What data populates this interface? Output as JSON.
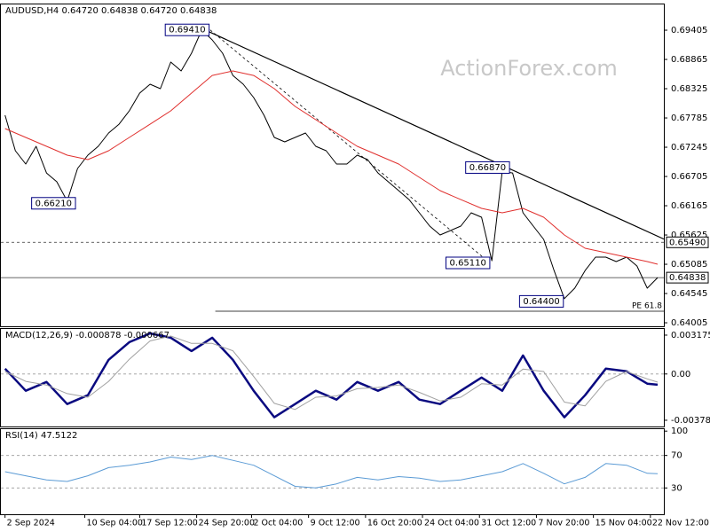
{
  "chart_data": [
    {
      "type": "line",
      "title": "AUDUSD,H4 0.64720 0.64838 0.64720 0.64838",
      "watermark": "ActionForex.com",
      "xlim": [
        -0.4,
        63.6
      ],
      "ylim": [
        0.6394,
        0.6988
      ],
      "yticks": [
        0.69405,
        0.68865,
        0.68325,
        0.67785,
        0.67245,
        0.66705,
        0.66165,
        0.65625,
        0.65085,
        0.64545,
        0.64005
      ],
      "series": [
        {
          "color": "#000000",
          "values": [
            0.67834,
            0.6718,
            0.66934,
            0.67261,
            0.6677,
            0.66607,
            0.6625,
            0.66852,
            0.67098,
            0.67261,
            0.67507,
            0.6767,
            0.67916,
            0.68243,
            0.68407,
            0.68325,
            0.68816,
            0.68652,
            0.6898,
            0.6941,
            0.69225,
            0.6898,
            0.6857,
            0.68407,
            0.68161,
            0.67834,
            0.67425,
            0.67343,
            0.67425,
            0.67507,
            0.67261,
            0.6718,
            0.66934,
            0.66934,
            0.67098,
            0.67016,
            0.6677,
            0.66607,
            0.66443,
            0.66279,
            0.66034,
            0.65789,
            0.65625,
            0.65707,
            0.65789,
            0.66034,
            0.65952,
            0.6515,
            0.668,
            0.6677,
            0.66034,
            0.65789,
            0.65543,
            0.6497,
            0.6445,
            0.64643,
            0.6497,
            0.65216,
            0.65216,
            0.65134,
            0.65216,
            0.65052,
            0.64643,
            0.64838
          ]
        },
        {
          "color": "#e0302e",
          "x": [
            0,
            2,
            4,
            6,
            8,
            10,
            12,
            14,
            16,
            18,
            20,
            22,
            24,
            26,
            28,
            30,
            32,
            34,
            36,
            38,
            40,
            42,
            44,
            46,
            48,
            50,
            52,
            54,
            56,
            58,
            60,
            62,
            63
          ],
          "values": [
            0.67589,
            0.67425,
            0.67261,
            0.67098,
            0.67016,
            0.6718,
            0.67425,
            0.6767,
            0.67916,
            0.68243,
            0.6857,
            0.68652,
            0.6857,
            0.68325,
            0.67998,
            0.67752,
            0.67507,
            0.67261,
            0.67098,
            0.66934,
            0.66689,
            0.66443,
            0.66279,
            0.66116,
            0.66034,
            0.66116,
            0.65952,
            0.65625,
            0.6538,
            0.65298,
            0.65216,
            0.65134,
            0.65085
          ]
        }
      ],
      "trendlines": [
        {
          "style": "solid",
          "x": [
            19.3,
            63.6
          ],
          "y": [
            0.6941,
            0.6555
          ]
        },
        {
          "style": "dashed",
          "x": [
            19.8,
            46.8
          ],
          "y": [
            0.6941,
            0.6511
          ]
        }
      ],
      "price_labels": [
        {
          "value": 0.6941,
          "label": "0.69410",
          "x": 19.7
        },
        {
          "value": 0.6621,
          "label": "0.66210",
          "x": 6.8
        },
        {
          "value": 0.6687,
          "label": "0.66870",
          "x": 48.7
        },
        {
          "value": 0.6511,
          "label": "0.65110",
          "x": 46.8
        },
        {
          "value": 0.644,
          "label": "0.64400",
          "x": 53.9
        }
      ],
      "levels": [
        {
          "value": 0.6549,
          "label": "0.65490",
          "style": "dashed"
        },
        {
          "value": 0.64838,
          "label": "0.64838",
          "style": "solid"
        }
      ],
      "projection": {
        "value": 0.64218,
        "label": "PE 61.8",
        "from": 20.3
      }
    },
    {
      "type": "line",
      "title": "MACD(12,26,9) -0.000878 -0.000667",
      "xlim": [
        -0.4,
        63.6
      ],
      "ylim": [
        -0.00429,
        0.00368
      ],
      "yticks": [
        0.003175,
        {
          "value": 0,
          "label": "0.00"
        },
        -0.00378
      ],
      "levels": [
        {
          "value": 0,
          "style": "dashed"
        }
      ],
      "series": [
        {
          "color": "#0a0a80",
          "x": [
            0,
            2,
            4,
            6,
            8,
            10,
            12,
            14,
            16,
            18,
            20,
            22,
            24,
            26,
            28,
            30,
            32,
            34,
            36,
            38,
            40,
            42,
            44,
            46,
            48,
            50,
            52,
            54,
            56,
            58,
            60,
            62,
            63
          ],
          "values": [
            0.000433,
            -0.001372,
            -0.00065,
            -0.002455,
            -0.001733,
            0.001155,
            0.002599,
            0.003321,
            0.00296,
            0.001877,
            0.00296,
            0.001155,
            -0.001372,
            -0.003538,
            -0.002455,
            -0.001372,
            -0.002094,
            -0.00065,
            -0.001372,
            -0.00065,
            -0.002094,
            -0.002455,
            -0.001372,
            -0.000289,
            -0.001372,
            0.001516,
            -0.001372,
            -0.003538,
            -0.001733,
            0.000433,
            0.000217,
            -0.000794,
            -0.000878
          ]
        },
        {
          "color": "#a0a0a0",
          "x": [
            0,
            2,
            4,
            6,
            8,
            10,
            12,
            14,
            16,
            18,
            20,
            22,
            24,
            26,
            28,
            30,
            32,
            34,
            36,
            38,
            40,
            42,
            44,
            46,
            48,
            50,
            52,
            54,
            56,
            58,
            60,
            62,
            63
          ],
          "values": [
            0.0002,
            -0.0006,
            -0.0009,
            -0.0016,
            -0.0019,
            -0.0006,
            0.0012,
            0.0027,
            0.0031,
            0.0025,
            0.0025,
            0.0019,
            -0.0002,
            -0.0024,
            -0.0029,
            -0.0019,
            -0.0018,
            -0.0012,
            -0.0011,
            -0.0009,
            -0.0015,
            -0.0022,
            -0.0019,
            -0.0008,
            -0.0009,
            0.0004,
            0.0002,
            -0.0023,
            -0.0026,
            -0.0006,
            0.0002,
            -0.0004,
            -0.000667
          ]
        }
      ]
    },
    {
      "type": "line",
      "title": "RSI(14) 47.5122",
      "xlim": [
        -0.4,
        63.6
      ],
      "ylim": [
        -2.4,
        102.4
      ],
      "yticks": [
        100,
        70,
        30
      ],
      "levels": [
        {
          "value": 70,
          "style": "dashed"
        },
        {
          "value": 30,
          "style": "dashed"
        }
      ],
      "series": [
        {
          "color": "#5b9bd5",
          "x": [
            0,
            2,
            4,
            6,
            8,
            10,
            12,
            14,
            16,
            18,
            20,
            22,
            24,
            26,
            28,
            30,
            32,
            34,
            36,
            38,
            40,
            42,
            44,
            46,
            48,
            50,
            52,
            54,
            56,
            58,
            60,
            62,
            63
          ],
          "values": [
            50,
            45,
            40,
            38,
            45,
            55,
            58,
            62,
            68,
            65,
            70,
            64,
            58,
            45,
            32,
            30,
            35,
            43,
            40,
            44,
            42,
            38,
            40,
            45,
            50,
            60,
            48,
            35,
            43,
            60,
            58,
            48,
            47.5122
          ]
        }
      ],
      "xticks": [
        {
          "value": 0,
          "label": "2 Sep 2024"
        },
        {
          "value": 7.7,
          "label": "10 Sep 04:00"
        },
        {
          "value": 13,
          "label": "17 Sep 12:00"
        },
        {
          "value": 18.5,
          "label": "24 Sep 20:00"
        },
        {
          "value": 23.8,
          "label": "2 Oct 04:00"
        },
        {
          "value": 29.3,
          "label": "9 Oct 12:00"
        },
        {
          "value": 34.8,
          "label": "16 Oct 20:00"
        },
        {
          "value": 40.3,
          "label": "24 Oct 04:00"
        },
        {
          "value": 45.8,
          "label": "31 Oct 12:00"
        },
        {
          "value": 51.3,
          "label": "7 Nov 20:00"
        },
        {
          "value": 56.8,
          "label": "15 Nov 04:00"
        },
        {
          "value": 62.3,
          "label": "22 Nov 12:00"
        }
      ]
    }
  ]
}
